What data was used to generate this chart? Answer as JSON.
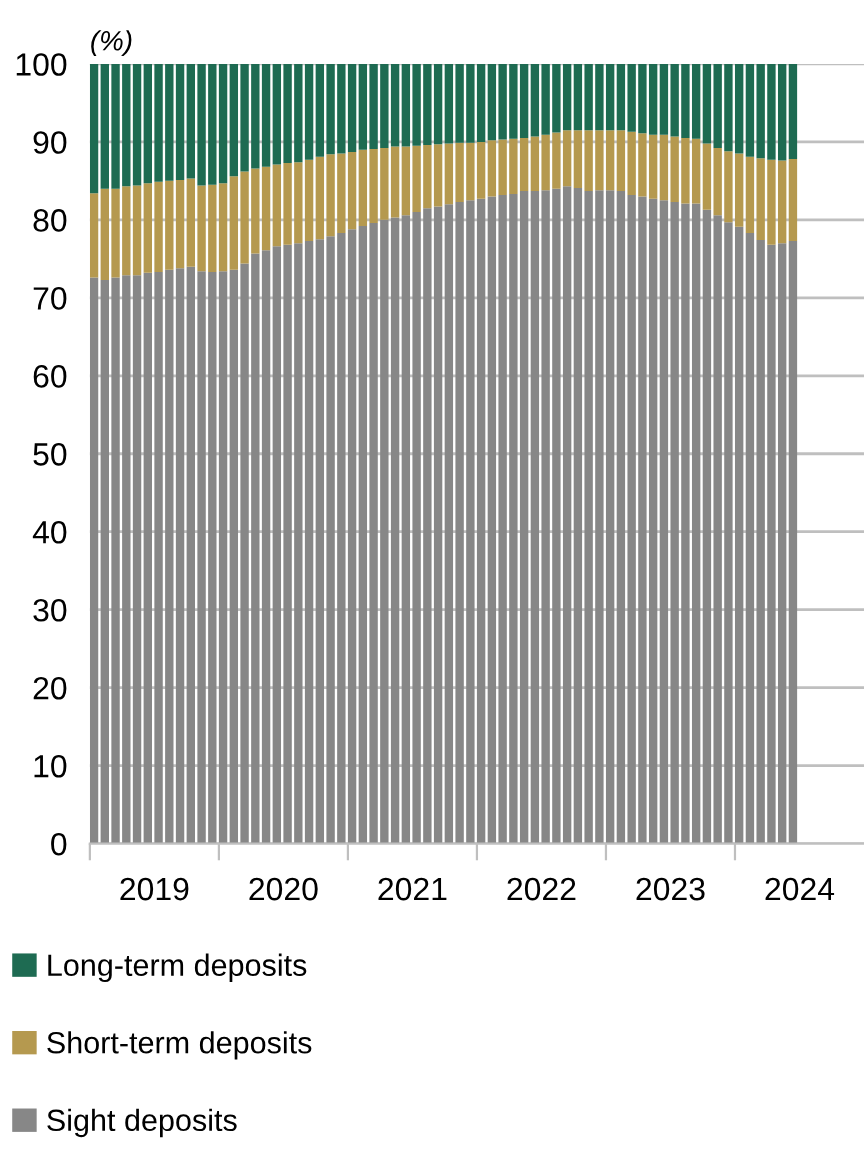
{
  "chart_data": {
    "type": "bar",
    "stacked": true,
    "ylabel": "(%)",
    "x": [
      "2019-01",
      "2019-02",
      "2019-03",
      "2019-04",
      "2019-05",
      "2019-06",
      "2019-07",
      "2019-08",
      "2019-09",
      "2019-10",
      "2019-11",
      "2019-12",
      "2020-01",
      "2020-02",
      "2020-03",
      "2020-04",
      "2020-05",
      "2020-06",
      "2020-07",
      "2020-08",
      "2020-09",
      "2020-10",
      "2020-11",
      "2020-12",
      "2021-01",
      "2021-02",
      "2021-03",
      "2021-04",
      "2021-05",
      "2021-06",
      "2021-07",
      "2021-08",
      "2021-09",
      "2021-10",
      "2021-11",
      "2021-12",
      "2022-01",
      "2022-02",
      "2022-03",
      "2022-04",
      "2022-05",
      "2022-06",
      "2022-07",
      "2022-08",
      "2022-09",
      "2022-10",
      "2022-11",
      "2022-12",
      "2023-01",
      "2023-02",
      "2023-03",
      "2023-04",
      "2023-05",
      "2023-06",
      "2023-07",
      "2023-08",
      "2023-09",
      "2023-10",
      "2023-11",
      "2023-12",
      "2024-01",
      "2024-02",
      "2024-03",
      "2024-04",
      "2024-05",
      "2024-06"
    ],
    "series": [
      {
        "name": "Sight deposits",
        "color": "#878787",
        "values": [
          72.6,
          72.3,
          72.6,
          72.9,
          72.9,
          73.2,
          73.3,
          73.6,
          73.8,
          74.0,
          73.4,
          73.3,
          73.4,
          73.6,
          74.4,
          75.7,
          76.1,
          76.6,
          76.8,
          77.0,
          77.3,
          77.5,
          77.9,
          78.3,
          78.8,
          79.2,
          79.6,
          80.0,
          80.3,
          80.6,
          81.0,
          81.5,
          81.7,
          82.0,
          82.3,
          82.5,
          82.7,
          83.0,
          83.2,
          83.3,
          83.7,
          83.7,
          83.8,
          84.0,
          84.3,
          84.1,
          83.7,
          83.8,
          83.8,
          83.7,
          83.2,
          83.0,
          82.7,
          82.5,
          82.3,
          82.1,
          82.1,
          81.3,
          80.6,
          79.7,
          79.1,
          78.3,
          77.4,
          76.8,
          77.0,
          77.3
        ]
      },
      {
        "name": "Short-term deposits",
        "color": "#b5994f",
        "values": [
          10.8,
          11.7,
          11.4,
          11.4,
          11.5,
          11.5,
          11.6,
          11.4,
          11.3,
          11.3,
          11.0,
          11.2,
          11.3,
          12.0,
          11.8,
          10.9,
          10.7,
          10.5,
          10.5,
          10.4,
          10.4,
          10.6,
          10.5,
          10.2,
          9.9,
          9.8,
          9.5,
          9.2,
          9.1,
          8.8,
          8.5,
          8.1,
          8.0,
          7.8,
          7.6,
          7.4,
          7.3,
          7.2,
          7.1,
          7.1,
          6.8,
          7.0,
          7.1,
          7.2,
          7.2,
          7.4,
          7.8,
          7.7,
          7.7,
          7.8,
          8.1,
          8.1,
          8.2,
          8.4,
          8.4,
          8.4,
          8.3,
          8.5,
          8.6,
          9.1,
          9.4,
          9.8,
          10.5,
          10.9,
          10.6,
          10.5
        ]
      },
      {
        "name": "Long-term deposits",
        "color": "#1e6b52",
        "values": [
          16.6,
          16.0,
          16.0,
          15.7,
          15.6,
          15.3,
          15.1,
          15.0,
          14.9,
          14.7,
          15.6,
          15.5,
          15.3,
          14.4,
          13.8,
          13.4,
          13.2,
          12.9,
          12.7,
          12.6,
          12.3,
          11.9,
          11.6,
          11.5,
          11.3,
          11.0,
          10.9,
          10.8,
          10.6,
          10.6,
          10.5,
          10.4,
          10.3,
          10.2,
          10.1,
          10.1,
          10.0,
          9.8,
          9.7,
          9.6,
          9.5,
          9.3,
          9.1,
          8.8,
          8.5,
          8.5,
          8.5,
          8.5,
          8.5,
          8.5,
          8.7,
          8.9,
          9.1,
          9.1,
          9.3,
          9.5,
          9.6,
          10.2,
          10.8,
          11.2,
          11.5,
          11.9,
          12.1,
          12.3,
          12.4,
          12.2
        ]
      }
    ],
    "xlim": [
      "2019-01",
      "2025-01"
    ],
    "xticks": [
      {
        "value": "2019-01",
        "label": null
      },
      {
        "value": "2019-07",
        "label": "2019"
      },
      {
        "value": "2020-01",
        "label": null
      },
      {
        "value": "2020-07",
        "label": "2020"
      },
      {
        "value": "2021-01",
        "label": null
      },
      {
        "value": "2021-07",
        "label": "2021"
      },
      {
        "value": "2022-01",
        "label": null
      },
      {
        "value": "2022-07",
        "label": "2022"
      },
      {
        "value": "2023-01",
        "label": null
      },
      {
        "value": "2023-07",
        "label": "2023"
      },
      {
        "value": "2024-01",
        "label": null
      },
      {
        "value": "2024-07",
        "label": "2024"
      }
    ],
    "ylim": [
      0,
      100
    ],
    "yticks": [
      0,
      10,
      20,
      30,
      40,
      50,
      60,
      70,
      80,
      90,
      100
    ],
    "grid": "y",
    "legend": "bottom"
  }
}
